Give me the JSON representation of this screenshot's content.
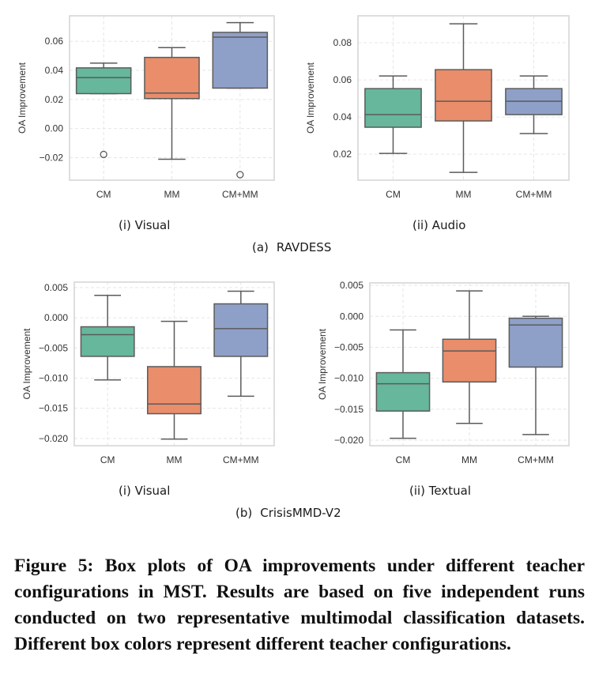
{
  "figure": {
    "caption": "Figure 5: Box plots of OA improvements under different teacher configurations in MST. Results are based on five independent runs conducted on two representative multimodal classification datasets. Different box colors represent different teacher configurations.",
    "palette": {
      "CM": "#66b79c",
      "MM": "#e98d6b",
      "CM+MM": "#8fa0c8"
    },
    "datasets": [
      {
        "tag": "(a)",
        "name": "RAVDESS"
      },
      {
        "tag": "(b)",
        "name": "CrisisMMD-V2"
      }
    ]
  },
  "chart_data": [
    {
      "type": "box",
      "dataset": "RAVDESS",
      "subtitle": "(i) Visual",
      "xlabel": "",
      "ylabel": "OA Improvement",
      "categories": [
        "CM",
        "MM",
        "CM+MM"
      ],
      "yticks": [
        -0.02,
        0.0,
        0.02,
        0.04,
        0.06
      ],
      "ytick_labels": [
        "−0.02",
        "0.00",
        "0.02",
        "0.04",
        "0.06"
      ],
      "ylim": [
        -0.0355,
        0.0775
      ],
      "grid": true,
      "boxes": [
        {
          "name": "CM",
          "whisker_low": 0.024,
          "q1": 0.024,
          "median": 0.035,
          "q3": 0.0417,
          "whisker_high": 0.045,
          "outliers": [
            -0.0178
          ]
        },
        {
          "name": "MM",
          "whisker_low": -0.0211,
          "q1": 0.0206,
          "median": 0.0244,
          "q3": 0.0489,
          "whisker_high": 0.0556,
          "outliers": []
        },
        {
          "name": "CM+MM",
          "whisker_low": 0.0278,
          "q1": 0.0278,
          "median": 0.0628,
          "q3": 0.0661,
          "whisker_high": 0.0728,
          "outliers": [
            -0.0317
          ]
        }
      ]
    },
    {
      "type": "box",
      "dataset": "RAVDESS",
      "subtitle": "(ii) Audio",
      "xlabel": "",
      "ylabel": "OA Improvement",
      "categories": [
        "CM",
        "MM",
        "CM+MM"
      ],
      "yticks": [
        0.02,
        0.04,
        0.06,
        0.08
      ],
      "ytick_labels": [
        "0.02",
        "0.04",
        "0.06",
        "0.08"
      ],
      "ylim": [
        0.006,
        0.0945
      ],
      "grid": true,
      "boxes": [
        {
          "name": "CM",
          "whisker_low": 0.0204,
          "q1": 0.0345,
          "median": 0.0413,
          "q3": 0.0553,
          "whisker_high": 0.0621,
          "outliers": []
        },
        {
          "name": "MM",
          "whisker_low": 0.0102,
          "q1": 0.0379,
          "median": 0.0485,
          "q3": 0.0655,
          "whisker_high": 0.0902,
          "outliers": []
        },
        {
          "name": "CM+MM",
          "whisker_low": 0.0311,
          "q1": 0.0413,
          "median": 0.0485,
          "q3": 0.0553,
          "whisker_high": 0.0621,
          "outliers": []
        }
      ]
    },
    {
      "type": "box",
      "dataset": "CrisisMMD-V2",
      "subtitle": "(i) Visual",
      "xlabel": "",
      "ylabel": "OA Improvement",
      "categories": [
        "CM",
        "MM",
        "CM+MM"
      ],
      "yticks": [
        -0.02,
        -0.015,
        -0.01,
        -0.005,
        0.0,
        0.005
      ],
      "ytick_labels": [
        "−0.020",
        "−0.015",
        "−0.010",
        "−0.005",
        "0.000",
        "0.005"
      ],
      "ylim": [
        -0.0212,
        0.0059
      ],
      "grid": true,
      "boxes": [
        {
          "name": "CM",
          "whisker_low": -0.0103,
          "q1": -0.0064,
          "median": -0.0028,
          "q3": -0.0015,
          "whisker_high": 0.0037,
          "outliers": []
        },
        {
          "name": "MM",
          "whisker_low": -0.0201,
          "q1": -0.0159,
          "median": -0.0143,
          "q3": -0.0081,
          "whisker_high": -0.0006,
          "outliers": []
        },
        {
          "name": "CM+MM",
          "whisker_low": -0.013,
          "q1": -0.0064,
          "median": -0.0018,
          "q3": 0.0023,
          "whisker_high": 0.0044,
          "outliers": []
        }
      ]
    },
    {
      "type": "box",
      "dataset": "CrisisMMD-V2",
      "subtitle": "(ii) Textual",
      "xlabel": "",
      "ylabel": "OA Improvement",
      "categories": [
        "CM",
        "MM",
        "CM+MM"
      ],
      "yticks": [
        -0.02,
        -0.015,
        -0.01,
        -0.005,
        0.0,
        0.005
      ],
      "ytick_labels": [
        "−0.020",
        "−0.015",
        "−0.010",
        "−0.005",
        "0.000",
        "0.005"
      ],
      "ylim": [
        -0.0209,
        0.0054
      ],
      "grid": true,
      "boxes": [
        {
          "name": "CM",
          "whisker_low": -0.0197,
          "q1": -0.0153,
          "median": -0.0109,
          "q3": -0.0091,
          "whisker_high": -0.0022,
          "outliers": []
        },
        {
          "name": "MM",
          "whisker_low": -0.0173,
          "q1": -0.0106,
          "median": -0.0056,
          "q3": -0.0037,
          "whisker_high": 0.0041,
          "outliers": []
        },
        {
          "name": "CM+MM",
          "whisker_low": -0.0191,
          "q1": -0.0082,
          "median": -0.0014,
          "q3": -0.0003,
          "whisker_high": 0.0,
          "outliers": []
        }
      ]
    }
  ]
}
